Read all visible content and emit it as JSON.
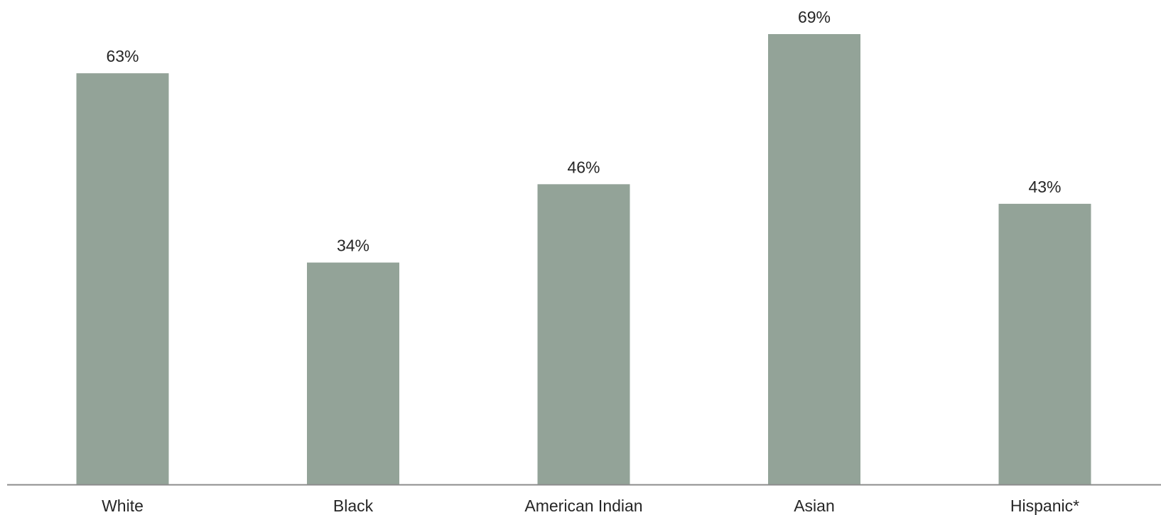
{
  "chart_data": {
    "type": "bar",
    "categories": [
      "White",
      "Black",
      "American Indian",
      "Asian",
      "Hispanic*"
    ],
    "values": [
      63,
      34,
      46,
      69,
      43
    ],
    "value_labels": [
      "63%",
      "34%",
      "46%",
      "69%",
      "43%"
    ],
    "unit": "%",
    "title": "",
    "xlabel": "",
    "ylabel": "",
    "ylim": [
      0,
      69
    ],
    "grid": false,
    "legend": "none",
    "colors": {
      "bar": "#93a398",
      "axis": "#8c8c8c",
      "text": "#262626"
    }
  }
}
